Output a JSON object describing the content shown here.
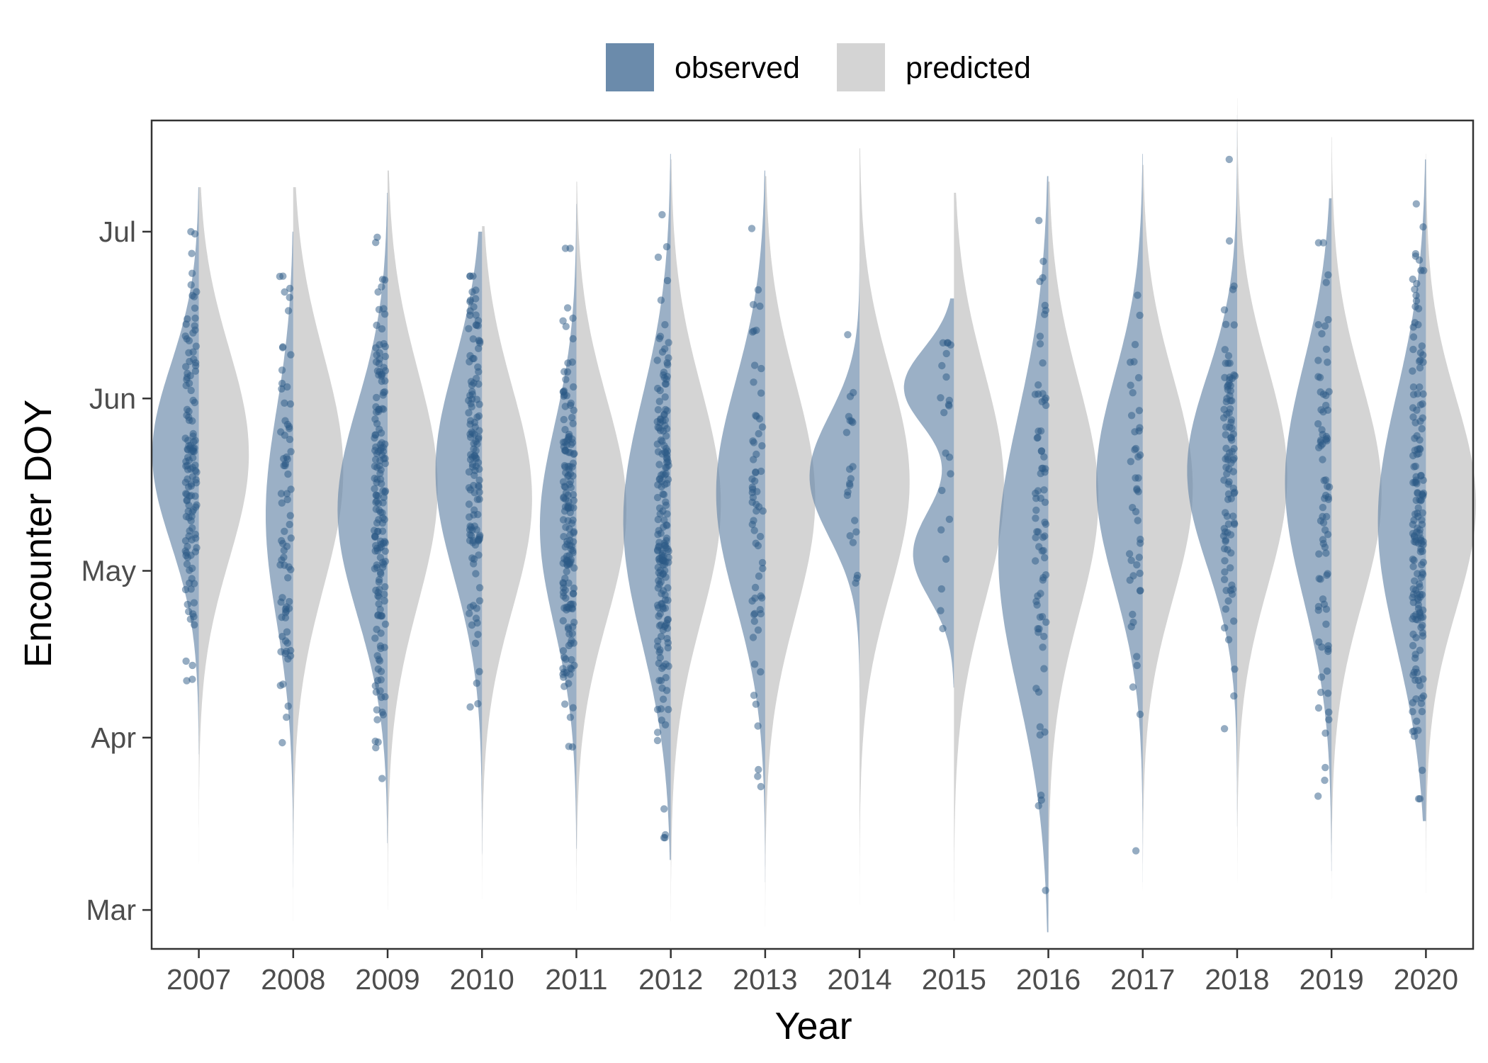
{
  "chart_data": {
    "type": "split-violin",
    "xlabel": "Year",
    "ylabel": "Encounter DOY",
    "categories": [
      "2007",
      "2008",
      "2009",
      "2010",
      "2011",
      "2012",
      "2013",
      "2014",
      "2015",
      "2016",
      "2017",
      "2018",
      "2019",
      "2020"
    ],
    "y_ticks": [
      {
        "label": "Mar",
        "doy": 60
      },
      {
        "label": "Apr",
        "doy": 91
      },
      {
        "label": "May",
        "doy": 121
      },
      {
        "label": "Jun",
        "doy": 152
      },
      {
        "label": "Jul",
        "doy": 182
      }
    ],
    "ylim": [
      53,
      202
    ],
    "grid": false,
    "legend_position": "top",
    "series": [
      {
        "name": "observed",
        "color": "#6b8bab"
      },
      {
        "name": "predicted",
        "color": "#d4d4d4"
      }
    ],
    "observed": [
      {
        "year": "2007",
        "min": 88,
        "max": 190,
        "components": [
          {
            "w": 1,
            "mu": 142,
            "sd": 16
          }
        ],
        "peak_width": 0.93,
        "points": 130
      },
      {
        "year": "2008",
        "min": 62,
        "max": 182,
        "components": [
          {
            "w": 1,
            "mu": 131,
            "sd": 19
          }
        ],
        "peak_width": 0.55,
        "points": 75
      },
      {
        "year": "2009",
        "min": 72,
        "max": 189,
        "components": [
          {
            "w": 1,
            "mu": 132,
            "sd": 19
          }
        ],
        "peak_width": 1.0,
        "points": 170
      },
      {
        "year": "2010",
        "min": 70,
        "max": 182,
        "components": [
          {
            "w": 1,
            "mu": 139,
            "sd": 19
          }
        ],
        "peak_width": 0.93,
        "points": 130
      },
      {
        "year": "2011",
        "min": 71,
        "max": 187,
        "components": [
          {
            "w": 1,
            "mu": 129,
            "sd": 18
          }
        ],
        "peak_width": 0.73,
        "points": 170
      },
      {
        "year": "2012",
        "min": 69,
        "max": 196,
        "components": [
          {
            "w": 1,
            "mu": 130,
            "sd": 22
          }
        ],
        "peak_width": 0.95,
        "points": 190
      },
      {
        "year": "2013",
        "min": 65,
        "max": 193,
        "components": [
          {
            "w": 1,
            "mu": 135,
            "sd": 20
          }
        ],
        "peak_width": 0.98,
        "points": 65
      },
      {
        "year": "2014",
        "min": 68,
        "max": 197,
        "components": [
          {
            "w": 1,
            "mu": 138,
            "sd": 11
          }
        ],
        "peak_width": 1.0,
        "points": 22
      },
      {
        "year": "2015",
        "min": 100,
        "max": 170,
        "components": [
          {
            "w": 0.55,
            "mu": 154,
            "sd": 7
          },
          {
            "w": 0.45,
            "mu": 124,
            "sd": 8
          }
        ],
        "peak_width": 1.0,
        "points": 22
      },
      {
        "year": "2016",
        "min": 56,
        "max": 192,
        "components": [
          {
            "w": 1,
            "mu": 124,
            "sd": 25
          }
        ],
        "peak_width": 1.0,
        "points": 75
      },
      {
        "year": "2017",
        "min": 65,
        "max": 196,
        "components": [
          {
            "w": 1,
            "mu": 137,
            "sd": 19
          }
        ],
        "peak_width": 0.93,
        "points": 45
      },
      {
        "year": "2018",
        "min": 75,
        "max": 203,
        "components": [
          {
            "w": 1,
            "mu": 139,
            "sd": 17
          }
        ],
        "peak_width": 1.0,
        "points": 100
      },
      {
        "year": "2019",
        "min": 67,
        "max": 188,
        "components": [
          {
            "w": 1,
            "mu": 137,
            "sd": 21
          }
        ],
        "peak_width": 0.93,
        "points": 80
      },
      {
        "year": "2020",
        "min": 76,
        "max": 195,
        "components": [
          {
            "w": 1,
            "mu": 130,
            "sd": 23
          }
        ],
        "peak_width": 0.96,
        "points": 170
      }
    ],
    "predicted": [
      {
        "year": "2007",
        "min": 60,
        "max": 190,
        "mu": 142,
        "sd": 19
      },
      {
        "year": "2008",
        "min": 58,
        "max": 190,
        "mu": 139,
        "sd": 21
      },
      {
        "year": "2009",
        "min": 60,
        "max": 193,
        "mu": 136,
        "sd": 21
      },
      {
        "year": "2010",
        "min": 62,
        "max": 183,
        "mu": 134,
        "sd": 20
      },
      {
        "year": "2011",
        "min": 60,
        "max": 191,
        "mu": 132,
        "sd": 20
      },
      {
        "year": "2012",
        "min": 58,
        "max": 195,
        "mu": 133,
        "sd": 21
      },
      {
        "year": "2013",
        "min": 57,
        "max": 192,
        "mu": 134,
        "sd": 21
      },
      {
        "year": "2014",
        "min": 61,
        "max": 197,
        "mu": 137,
        "sd": 20
      },
      {
        "year": "2015",
        "min": 58,
        "max": 189,
        "mu": 136,
        "sd": 21
      },
      {
        "year": "2016",
        "min": 56,
        "max": 191,
        "mu": 134,
        "sd": 21
      },
      {
        "year": "2017",
        "min": 60,
        "max": 194,
        "mu": 136,
        "sd": 20
      },
      {
        "year": "2018",
        "min": 62,
        "max": 206,
        "mu": 138,
        "sd": 20
      },
      {
        "year": "2019",
        "min": 62,
        "max": 199,
        "mu": 135,
        "sd": 20
      },
      {
        "year": "2020",
        "min": 63,
        "max": 196,
        "mu": 133,
        "sd": 19
      }
    ]
  }
}
